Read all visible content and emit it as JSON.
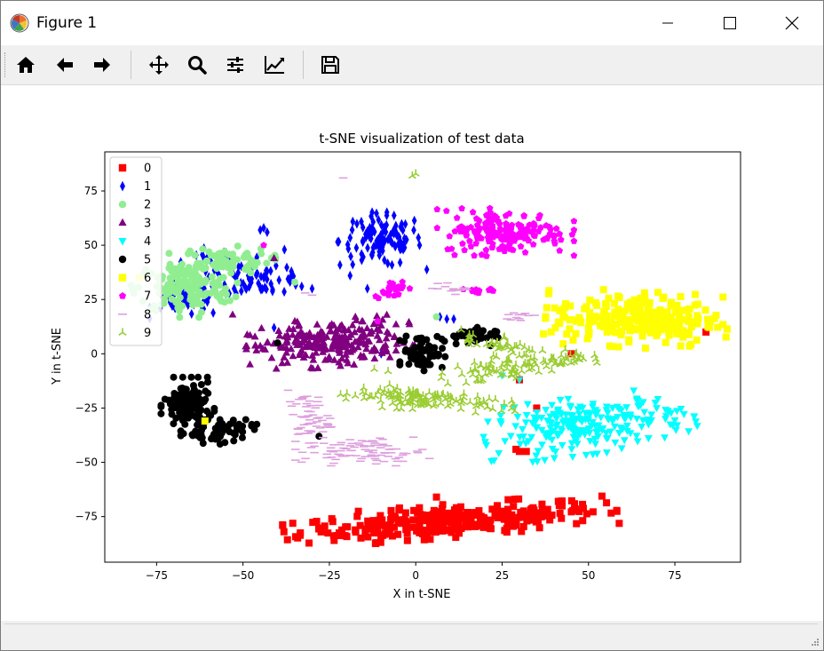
{
  "window": {
    "title": "Figure 1",
    "icons": [
      "matplotlib-logo-icon",
      "minimize-icon",
      "maximize-icon",
      "close-icon"
    ]
  },
  "toolbar": {
    "buttons": [
      "home-icon",
      "back-arrow-icon",
      "forward-arrow-icon",
      "pan-move-icon",
      "zoom-magnifier-icon",
      "configure-subplots-icon",
      "edit-axis-icon",
      "save-figure-icon"
    ]
  },
  "chart_data": {
    "type": "scatter",
    "title": "t-SNE visualization of test data",
    "xlabel": "X in t-SNE",
    "ylabel": "Y in t-SNE",
    "xlim": [
      -90,
      94
    ],
    "ylim": [
      -96,
      93
    ],
    "xticks": [
      -75,
      -50,
      -25,
      0,
      25,
      50,
      75
    ],
    "yticks": [
      -75,
      -50,
      -25,
      0,
      25,
      50,
      75
    ],
    "xtick_labels": [
      "−75",
      "−50",
      "−25",
      "0",
      "25",
      "50",
      "75"
    ],
    "ytick_labels": [
      "−75",
      "−50",
      "−25",
      "0",
      "25",
      "50",
      "75"
    ],
    "grid": false,
    "legend_position": "upper-left",
    "series": [
      {
        "name": "0",
        "marker": "square",
        "color": "#ff0000",
        "clusters": [
          {
            "cx": 10,
            "cy": -77,
            "sx": 22,
            "sy": 3.5,
            "n": 300,
            "rot": 0.12
          }
        ],
        "points": [
          [
            45,
            0
          ],
          [
            30,
            -45
          ],
          [
            29,
            -44
          ],
          [
            35,
            -25
          ],
          [
            30,
            -12
          ],
          [
            84,
            10
          ],
          [
            6,
            -66
          ],
          [
            32,
            -45
          ]
        ]
      },
      {
        "name": "1",
        "marker": "thin_diamond",
        "color": "#0000ff",
        "clusters": [
          {
            "cx": -10,
            "cy": 52,
            "sx": 6,
            "sy": 6,
            "n": 110,
            "rot": 0
          },
          {
            "cx": -66,
            "cy": 25,
            "sx": 5,
            "sy": 4,
            "n": 50,
            "rot": 0
          },
          {
            "cx": -44,
            "cy": 34,
            "sx": 6,
            "sy": 3,
            "n": 50,
            "rot": 0
          },
          {
            "cx": -57,
            "cy": 42,
            "sx": 5,
            "sy": 3,
            "n": 30,
            "rot": 0
          }
        ],
        "points": [
          [
            -45,
            57
          ],
          [
            -44,
            58
          ],
          [
            -43,
            56
          ],
          [
            -38,
            48
          ],
          [
            -19,
            36
          ],
          [
            -14,
            30
          ],
          [
            9,
            16
          ],
          [
            7,
            17
          ],
          [
            11,
            16
          ],
          [
            -10,
            0
          ],
          [
            -41,
            12
          ],
          [
            -33,
            31
          ],
          [
            -30,
            30
          ]
        ]
      },
      {
        "name": "2",
        "marker": "circle",
        "color": "#90ee90",
        "clusters": [
          {
            "cx": -67,
            "cy": 30,
            "sx": 7,
            "sy": 6,
            "n": 150,
            "rot": 0
          },
          {
            "cx": -56,
            "cy": 43,
            "sx": 7,
            "sy": 3,
            "n": 80,
            "rot": 0
          }
        ],
        "points": [
          [
            6,
            17
          ],
          [
            -35,
            33
          ],
          [
            -82,
            30
          ]
        ]
      },
      {
        "name": "3",
        "marker": "triangle_up",
        "color": "#800080",
        "clusters": [
          {
            "cx": -25,
            "cy": 5,
            "sx": 11,
            "sy": 5,
            "n": 240,
            "rot": 0.15
          }
        ],
        "points": [
          [
            -53,
            18
          ],
          [
            -41,
            44
          ],
          [
            -35,
            15
          ],
          [
            -10,
            13
          ]
        ]
      },
      {
        "name": "4",
        "marker": "triangle_down",
        "color": "#00ffff",
        "clusters": [
          {
            "cx": 50,
            "cy": -33,
            "sx": 14,
            "sy": 6,
            "n": 230,
            "rot": 0.2
          }
        ],
        "points": [
          [
            30,
            -12
          ],
          [
            25,
            -10
          ]
        ]
      },
      {
        "name": "5",
        "marker": "circle",
        "color": "#000000",
        "clusters": [
          {
            "cx": -66,
            "cy": -24,
            "sx": 3.5,
            "sy": 6,
            "n": 110,
            "rot": 0
          },
          {
            "cx": -57,
            "cy": -35,
            "sx": 5,
            "sy": 3,
            "n": 60,
            "rot": 0
          },
          {
            "cx": 2,
            "cy": 1,
            "sx": 3,
            "sy": 4,
            "n": 70,
            "rot": 0
          },
          {
            "cx": 15,
            "cy": 8,
            "sx": 4,
            "sy": 2,
            "n": 40,
            "rot": 0
          }
        ],
        "points": [
          [
            -40,
            5
          ],
          [
            -28,
            -38
          ]
        ]
      },
      {
        "name": "6",
        "marker": "square",
        "color": "#ffff00",
        "clusters": [
          {
            "cx": 64,
            "cy": 16,
            "sx": 12,
            "sy": 6,
            "n": 240,
            "rot": -0.08
          }
        ],
        "points": [
          [
            -61,
            -31
          ],
          [
            -80,
            35
          ]
        ]
      },
      {
        "name": "7",
        "marker": "pentagon",
        "color": "#ff00ff",
        "clusters": [
          {
            "cx": 26,
            "cy": 56,
            "sx": 9,
            "sy": 5,
            "n": 170,
            "rot": 0
          },
          {
            "cx": -7,
            "cy": 30,
            "sx": 2.5,
            "sy": 2,
            "n": 25,
            "rot": 0
          },
          {
            "cx": 18,
            "cy": 29,
            "sx": 2,
            "sy": 1,
            "n": 12,
            "rot": 0
          }
        ],
        "points": [
          [
            -44,
            50
          ],
          [
            -11,
            15
          ]
        ]
      },
      {
        "name": "8",
        "marker": "hline",
        "color": "#dda0dd",
        "clusters": [
          {
            "cx": -15,
            "cy": -45,
            "sx": 9,
            "sy": 3,
            "n": 90,
            "rot": 0
          },
          {
            "cx": -31,
            "cy": -30,
            "sx": 3,
            "sy": 6,
            "n": 60,
            "rot": 0
          },
          {
            "cx": 11,
            "cy": 30,
            "sx": 3,
            "sy": 1.2,
            "n": 15,
            "rot": 0
          },
          {
            "cx": 31,
            "cy": 17,
            "sx": 2.5,
            "sy": 1,
            "n": 12,
            "rot": 0
          }
        ],
        "points": [
          [
            -21,
            81
          ],
          [
            -32,
            28
          ],
          [
            -30,
            27
          ]
        ]
      },
      {
        "name": "9",
        "marker": "tri_up",
        "color": "#9acd32",
        "clusters": [
          {
            "cx": -2,
            "cy": -20,
            "sx": 9,
            "sy": 2.5,
            "n": 110,
            "rot": -0.08
          },
          {
            "cx": 22,
            "cy": -8,
            "sx": 8,
            "sy": 3,
            "n": 60,
            "rot": 0.35
          },
          {
            "cx": 41,
            "cy": -3,
            "sx": 5,
            "sy": 2,
            "n": 40,
            "rot": 0.2
          },
          {
            "cx": 24,
            "cy": 5,
            "sx": 6,
            "sy": 2,
            "n": 35,
            "rot": -0.2
          },
          {
            "cx": 22,
            "cy": -24,
            "sx": 4,
            "sy": 1.5,
            "n": 15,
            "rot": 0
          }
        ],
        "points": [
          [
            -1,
            82
          ],
          [
            0,
            83
          ],
          [
            -12,
            -7
          ],
          [
            -8,
            -8
          ]
        ]
      }
    ]
  }
}
